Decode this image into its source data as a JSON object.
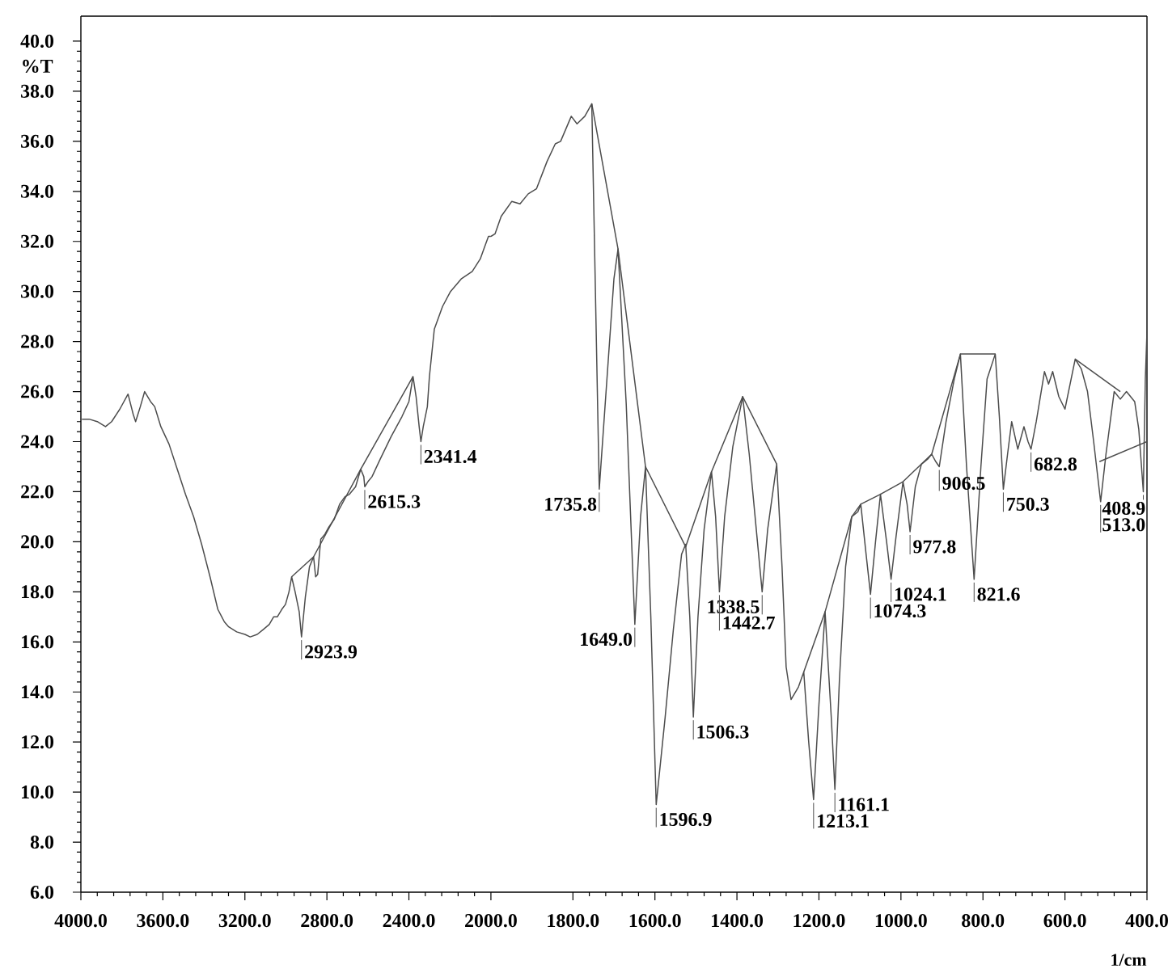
{
  "chart_data": [
    {
      "type": "line",
      "ylabel": "%T",
      "xlim": [
        4000,
        2000
      ],
      "ylim": [
        6,
        41
      ],
      "xticks": [
        {
          "value": 4000,
          "label": "4000.0"
        },
        {
          "value": 3600,
          "label": "3600.0"
        },
        {
          "value": 3200,
          "label": "3200.0"
        },
        {
          "value": 2800,
          "label": "2800.0"
        },
        {
          "value": 2400,
          "label": "2400.0"
        },
        {
          "value": 2000,
          "label": "2000.0"
        }
      ],
      "yticks": [
        {
          "value": 6,
          "label": "6.0"
        },
        {
          "value": 8,
          "label": "8.0"
        },
        {
          "value": 10,
          "label": "10.0"
        },
        {
          "value": 12,
          "label": "12.0"
        },
        {
          "value": 14,
          "label": "14.0"
        },
        {
          "value": 16,
          "label": "16.0"
        },
        {
          "value": 18,
          "label": "18.0"
        },
        {
          "value": 20,
          "label": "20.0"
        },
        {
          "value": 22,
          "label": "22.0"
        },
        {
          "value": 24,
          "label": "24.0"
        },
        {
          "value": 26,
          "label": "26.0"
        },
        {
          "value": 28,
          "label": "28.0"
        },
        {
          "value": 30,
          "label": "30.0"
        },
        {
          "value": 32,
          "label": "32.0"
        },
        {
          "value": 34,
          "label": "34.0"
        },
        {
          "value": 36,
          "label": "36.0"
        },
        {
          "value": 38,
          "label": "38.0"
        },
        {
          "value": 40,
          "label": "40.0"
        }
      ],
      "series": [
        {
          "color": "#4d4d4d",
          "x": [
            3995,
            3960,
            3920,
            3880,
            3850,
            3810,
            3770,
            3745,
            3733,
            3710,
            3689,
            3660,
            3640,
            3610,
            3570,
            3530,
            3490,
            3450,
            3411,
            3370,
            3332,
            3300,
            3279,
            3240,
            3200,
            3174,
            3140,
            3110,
            3081,
            3060,
            3042,
            3020,
            3002,
            2985,
            2972,
            2955,
            2935,
            2923.9,
            2905,
            2885,
            2865,
            2855,
            2845,
            2830,
            2810,
            2790,
            2764,
            2738,
            2712,
            2690,
            2660,
            2635,
            2620,
            2615.3,
            2600,
            2580,
            2540,
            2487,
            2434,
            2400,
            2380,
            2365,
            2350,
            2341.4,
            2330,
            2310,
            2300,
            2276,
            2236,
            2197,
            2145,
            2091,
            2052,
            2030,
            2012,
            2000
          ],
          "values": [
            24.9,
            24.9,
            24.8,
            24.6,
            24.8,
            25.3,
            25.9,
            25.1,
            24.8,
            25.4,
            26.0,
            25.6,
            25.4,
            24.6,
            23.9,
            22.9,
            21.9,
            21.0,
            19.9,
            18.6,
            17.3,
            16.8,
            16.6,
            16.4,
            16.3,
            16.2,
            16.3,
            16.5,
            16.7,
            17.0,
            17.0,
            17.3,
            17.5,
            18.0,
            18.6,
            18.0,
            17.2,
            16.2,
            17.8,
            19.0,
            19.4,
            18.6,
            18.7,
            20.1,
            20.3,
            20.6,
            20.9,
            21.5,
            21.8,
            21.9,
            22.2,
            22.9,
            22.6,
            22.2,
            22.4,
            22.6,
            23.3,
            24.2,
            25.0,
            25.6,
            26.6,
            25.8,
            24.6,
            24.0,
            24.6,
            25.4,
            26.6,
            28.5,
            29.4,
            30.0,
            30.5,
            30.8,
            31.3,
            31.8,
            32.2,
            32.2
          ]
        },
        {
          "color": "#4d4d4d",
          "x": [
            2972,
            2865,
            2635,
            2380
          ],
          "values": [
            18.6,
            19.4,
            22.9,
            26.6
          ]
        }
      ],
      "annotations": [
        {
          "text": "2923.9",
          "x": 2923.9,
          "y": 16.2
        },
        {
          "text": "2615.3",
          "x": 2615.3,
          "y": 22.2
        },
        {
          "text": "2341.4",
          "x": 2341.4,
          "y": 24.0
        }
      ]
    },
    {
      "type": "line",
      "xlabel": "1/cm",
      "tick_labels": "x",
      "xlim": [
        2000,
        400
      ],
      "ylim": [
        6,
        41
      ],
      "xticks": [
        {
          "value": 1800,
          "label": "1800.0"
        },
        {
          "value": 1600,
          "label": "1600.0"
        },
        {
          "value": 1400,
          "label": "1400.0"
        },
        {
          "value": 1200,
          "label": "1200.0"
        },
        {
          "value": 1000,
          "label": "1000.0"
        },
        {
          "value": 800,
          "label": "800.0"
        },
        {
          "value": 600,
          "label": "600.0"
        },
        {
          "value": 400,
          "label": "400.0"
        }
      ],
      "series": [
        {
          "color": "#4d4d4d",
          "x": [
            2000,
            1990,
            1975,
            1949,
            1929,
            1909,
            1889,
            1863,
            1843,
            1830,
            1804,
            1790,
            1771,
            1754,
            1735.8,
            1700,
            1690,
            1670,
            1649.0,
            1635,
            1623,
            1610,
            1596.9,
            1575,
            1555,
            1535,
            1525,
            1515,
            1506.3,
            1495,
            1480,
            1462,
            1452,
            1442.7,
            1430,
            1410,
            1386,
            1370,
            1350,
            1338.5,
            1325,
            1303,
            1290,
            1280,
            1268,
            1250,
            1237,
            1225,
            1213.1,
            1200,
            1185,
            1170,
            1161.1,
            1150,
            1135,
            1120,
            1105,
            1098,
            1085,
            1074.3,
            1062,
            1050,
            1035,
            1024.1,
            1012,
            995,
            985,
            977.8,
            965,
            950,
            935,
            925,
            915,
            906.5,
            890,
            870,
            855,
            840,
            821.6,
            805,
            790,
            770,
            760,
            750.3,
            740,
            730,
            715,
            700,
            690,
            682.8,
            670,
            650,
            640,
            630,
            615,
            600,
            585,
            575,
            560,
            545,
            530,
            513.0,
            500,
            480,
            465,
            450,
            430,
            420,
            408.9,
            404,
            400
          ],
          "values": [
            32.2,
            32.3,
            33.0,
            33.6,
            33.5,
            33.9,
            34.1,
            35.2,
            35.9,
            36.0,
            37.0,
            36.7,
            37.0,
            37.5,
            22.1,
            30.5,
            31.7,
            25.5,
            16.7,
            21.0,
            23.0,
            17.0,
            9.5,
            13.0,
            16.5,
            19.5,
            19.9,
            17.0,
            13.0,
            17.0,
            20.5,
            22.8,
            21.0,
            18.0,
            21.0,
            23.8,
            25.8,
            23.5,
            20.0,
            18.0,
            20.5,
            23.1,
            19.0,
            15.0,
            13.7,
            14.2,
            14.8,
            12.0,
            9.7,
            13.5,
            17.2,
            13.0,
            10.1,
            14.5,
            19.0,
            21.0,
            21.2,
            21.5,
            19.5,
            17.9,
            20.0,
            21.9,
            20.0,
            18.5,
            20.2,
            22.4,
            21.5,
            20.4,
            22.2,
            23.1,
            23.3,
            23.5,
            23.2,
            23.0,
            24.8,
            26.5,
            27.5,
            23.0,
            18.5,
            23.0,
            26.5,
            27.5,
            25.0,
            22.1,
            23.5,
            24.8,
            23.7,
            24.6,
            24.0,
            23.7,
            24.8,
            26.8,
            26.3,
            26.8,
            25.8,
            25.3,
            26.5,
            27.3,
            26.9,
            26.0,
            24.0,
            21.6,
            23.5,
            26.0,
            25.7,
            26.0,
            25.6,
            24.5,
            22.0,
            26.5,
            28.4
          ]
        },
        {
          "color": "#4d4d4d",
          "x": [
            1754,
            1690,
            1623,
            1525,
            1462,
            1386,
            1303
          ],
          "values": [
            37.5,
            31.7,
            23.0,
            19.8,
            22.8,
            25.8,
            23.1
          ]
        },
        {
          "color": "#4d4d4d",
          "x": [
            1237,
            1185,
            1120,
            1098,
            1050,
            995,
            925,
            855,
            770
          ],
          "values": [
            14.8,
            17.2,
            21.0,
            21.5,
            21.9,
            22.4,
            23.5,
            27.5,
            27.5
          ]
        },
        {
          "color": "#4d4d4d",
          "x": [
            575,
            465
          ],
          "values": [
            27.3,
            26.0
          ]
        },
        {
          "color": "#4d4d4d",
          "x": [
            516,
            400
          ],
          "values": [
            23.2,
            24.0
          ]
        }
      ],
      "annotations": [
        {
          "text": "1735.8",
          "x": 1735.8,
          "y": 22.1
        },
        {
          "text": "1649.0",
          "x": 1649.0,
          "y": 16.7
        },
        {
          "text": "1596.9",
          "x": 1596.9,
          "y": 9.5
        },
        {
          "text": "1506.3",
          "x": 1506.3,
          "y": 13.0
        },
        {
          "text": "1442.7",
          "x": 1442.7,
          "y": 18.0
        },
        {
          "text": "1338.5",
          "x": 1338.5,
          "y": 18.0
        },
        {
          "text": "1213.1",
          "x": 1213.1,
          "y": 9.7
        },
        {
          "text": "1161.1",
          "x": 1161.1,
          "y": 10.1
        },
        {
          "text": "1074.3",
          "x": 1074.3,
          "y": 17.9
        },
        {
          "text": "1024.1",
          "x": 1024.1,
          "y": 18.5
        },
        {
          "text": "977.8",
          "x": 977.8,
          "y": 20.4
        },
        {
          "text": "906.5",
          "x": 906.5,
          "y": 23.0
        },
        {
          "text": "821.6",
          "x": 821.6,
          "y": 18.5
        },
        {
          "text": "750.3",
          "x": 750.3,
          "y": 22.1
        },
        {
          "text": "682.8",
          "x": 682.8,
          "y": 23.7
        },
        {
          "text": "513.0",
          "x": 513.0,
          "y": 21.6
        },
        {
          "text": "408.9",
          "x": 408.9,
          "y": 22.0
        }
      ]
    }
  ]
}
